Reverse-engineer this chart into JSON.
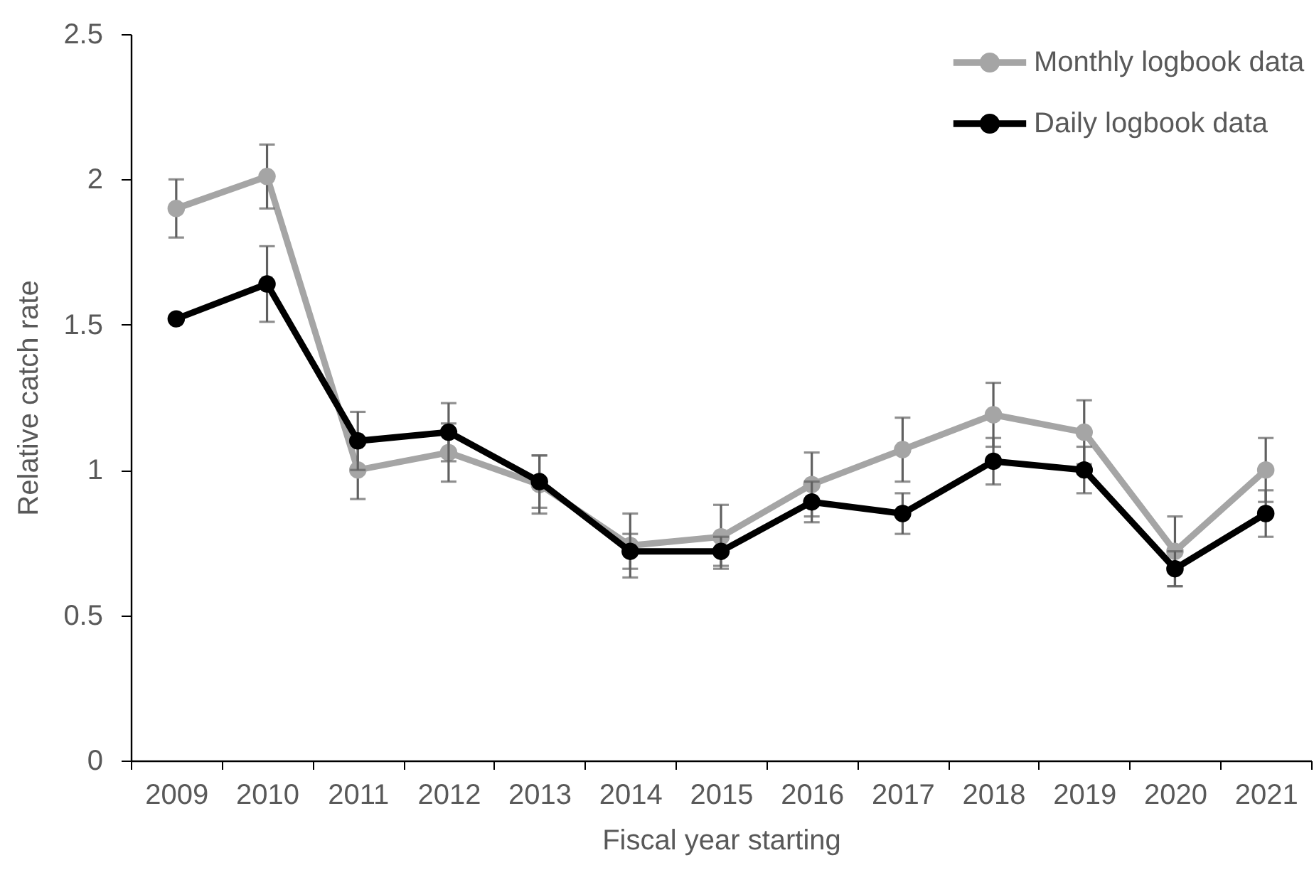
{
  "chart_data": {
    "type": "line",
    "xlabel": "Fiscal year starting",
    "ylabel": "Relative catch rate",
    "categories": [
      "2009",
      "2010",
      "2011",
      "2012",
      "2013",
      "2014",
      "2015",
      "2016",
      "2017",
      "2018",
      "2019",
      "2020",
      "2021"
    ],
    "series": [
      {
        "name": "Monthly logbook data",
        "color": "#a5a5a5",
        "values": [
          1.9,
          2.01,
          1.0,
          1.06,
          0.95,
          0.74,
          0.77,
          0.95,
          1.07,
          1.19,
          1.13,
          0.72,
          1.0
        ],
        "errors": [
          0.1,
          0.11,
          0.1,
          0.1,
          0.1,
          0.11,
          0.11,
          0.11,
          0.11,
          0.11,
          0.11,
          0.12,
          0.11
        ]
      },
      {
        "name": "Daily logbook data",
        "color": "#000000",
        "values": [
          1.52,
          1.64,
          1.1,
          1.13,
          0.96,
          0.72,
          0.72,
          0.89,
          0.85,
          1.03,
          1.0,
          0.66,
          0.85
        ],
        "errors": [
          null,
          0.13,
          0.1,
          0.1,
          0.09,
          0.06,
          0.05,
          0.07,
          0.07,
          0.08,
          0.08,
          0.06,
          0.08
        ]
      }
    ],
    "ylim": [
      0,
      2.5
    ],
    "yticks": [
      0,
      0.5,
      1,
      1.5,
      2,
      2.5
    ],
    "grid": false,
    "legend": "top right",
    "marker": "circle"
  }
}
